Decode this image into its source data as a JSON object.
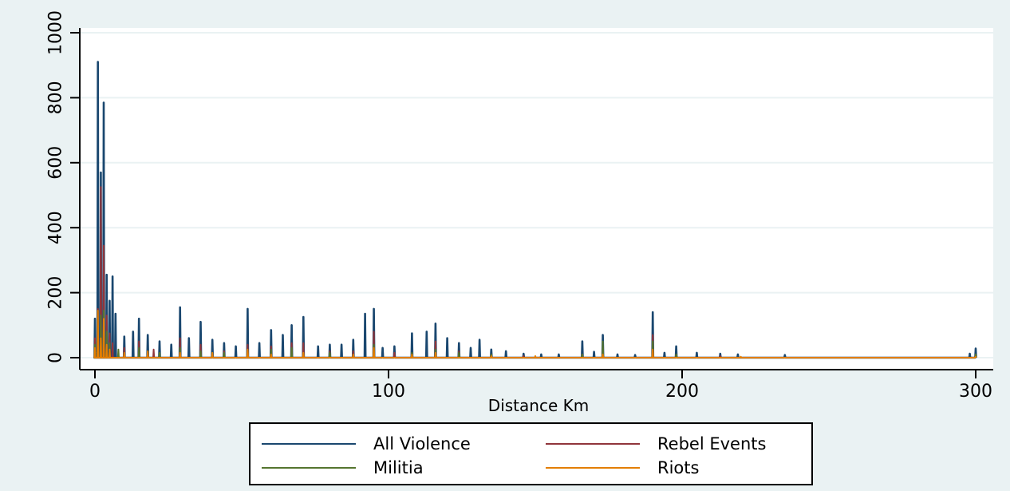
{
  "chart_data": {
    "type": "line",
    "title": "",
    "xlabel": "Distance Km",
    "ylabel": "",
    "xlim": [
      0,
      300
    ],
    "ylim": [
      0,
      1000
    ],
    "x_ticks": [
      0,
      100,
      200,
      300
    ],
    "y_ticks": [
      0,
      200,
      400,
      600,
      800,
      1000
    ],
    "grid": "horizontal",
    "legend_position": "bottom",
    "series": [
      {
        "name": "All Violence",
        "color": "#1a476f",
        "points": [
          [
            0,
            120
          ],
          [
            1,
            910
          ],
          [
            2,
            570
          ],
          [
            3,
            785
          ],
          [
            4,
            255
          ],
          [
            5,
            175
          ],
          [
            6,
            250
          ],
          [
            7,
            135
          ],
          [
            10,
            65
          ],
          [
            13,
            80
          ],
          [
            15,
            120
          ],
          [
            18,
            70
          ],
          [
            22,
            50
          ],
          [
            26,
            40
          ],
          [
            29,
            155
          ],
          [
            32,
            60
          ],
          [
            36,
            110
          ],
          [
            40,
            55
          ],
          [
            44,
            45
          ],
          [
            48,
            35
          ],
          [
            52,
            150
          ],
          [
            56,
            45
          ],
          [
            60,
            85
          ],
          [
            64,
            70
          ],
          [
            67,
            100
          ],
          [
            71,
            125
          ],
          [
            76,
            35
          ],
          [
            80,
            40
          ],
          [
            84,
            40
          ],
          [
            88,
            55
          ],
          [
            92,
            135
          ],
          [
            95,
            150
          ],
          [
            98,
            30
          ],
          [
            102,
            35
          ],
          [
            108,
            75
          ],
          [
            113,
            80
          ],
          [
            116,
            105
          ],
          [
            120,
            60
          ],
          [
            124,
            45
          ],
          [
            128,
            30
          ],
          [
            131,
            55
          ],
          [
            135,
            25
          ],
          [
            140,
            20
          ],
          [
            146,
            12
          ],
          [
            152,
            10
          ],
          [
            158,
            10
          ],
          [
            166,
            50
          ],
          [
            170,
            18
          ],
          [
            173,
            70
          ],
          [
            178,
            10
          ],
          [
            184,
            8
          ],
          [
            190,
            140
          ],
          [
            194,
            15
          ],
          [
            198,
            35
          ],
          [
            205,
            15
          ],
          [
            213,
            12
          ],
          [
            219,
            10
          ],
          [
            235,
            8
          ],
          [
            298,
            12
          ],
          [
            300,
            28
          ]
        ]
      },
      {
        "name": "Rebel Events",
        "color": "#90353b",
        "points": [
          [
            0,
            60
          ],
          [
            1,
            150
          ],
          [
            2,
            525
          ],
          [
            3,
            345
          ],
          [
            4,
            130
          ],
          [
            5,
            75
          ],
          [
            6,
            45
          ],
          [
            10,
            30
          ],
          [
            15,
            50
          ],
          [
            20,
            25
          ],
          [
            29,
            60
          ],
          [
            36,
            40
          ],
          [
            44,
            20
          ],
          [
            52,
            40
          ],
          [
            60,
            35
          ],
          [
            67,
            45
          ],
          [
            71,
            45
          ],
          [
            80,
            20
          ],
          [
            88,
            20
          ],
          [
            95,
            80
          ],
          [
            102,
            15
          ],
          [
            116,
            50
          ],
          [
            124,
            20
          ],
          [
            135,
            10
          ],
          [
            146,
            5
          ],
          [
            166,
            10
          ],
          [
            173,
            30
          ],
          [
            190,
            70
          ],
          [
            198,
            10
          ],
          [
            213,
            5
          ],
          [
            300,
            10
          ]
        ]
      },
      {
        "name": "Militia",
        "color": "#55752f",
        "points": [
          [
            0,
            40
          ],
          [
            1,
            100
          ],
          [
            2,
            130
          ],
          [
            3,
            145
          ],
          [
            4,
            80
          ],
          [
            5,
            45
          ],
          [
            8,
            25
          ],
          [
            15,
            30
          ],
          [
            22,
            15
          ],
          [
            29,
            30
          ],
          [
            36,
            20
          ],
          [
            44,
            15
          ],
          [
            52,
            20
          ],
          [
            60,
            25
          ],
          [
            67,
            30
          ],
          [
            80,
            15
          ],
          [
            95,
            40
          ],
          [
            108,
            15
          ],
          [
            116,
            25
          ],
          [
            124,
            15
          ],
          [
            135,
            10
          ],
          [
            166,
            10
          ],
          [
            173,
            50
          ],
          [
            190,
            50
          ],
          [
            198,
            10
          ],
          [
            300,
            10
          ]
        ]
      },
      {
        "name": "Riots",
        "color": "#e37e00",
        "points": [
          [
            0,
            30
          ],
          [
            1,
            145
          ],
          [
            2,
            60
          ],
          [
            3,
            120
          ],
          [
            4,
            40
          ],
          [
            5,
            25
          ],
          [
            10,
            15
          ],
          [
            18,
            20
          ],
          [
            29,
            15
          ],
          [
            40,
            15
          ],
          [
            52,
            25
          ],
          [
            60,
            10
          ],
          [
            71,
            15
          ],
          [
            88,
            10
          ],
          [
            95,
            30
          ],
          [
            108,
            10
          ],
          [
            116,
            15
          ],
          [
            135,
            5
          ],
          [
            150,
            5
          ],
          [
            173,
            10
          ],
          [
            190,
            25
          ],
          [
            220,
            3
          ],
          [
            300,
            3
          ]
        ]
      }
    ]
  }
}
